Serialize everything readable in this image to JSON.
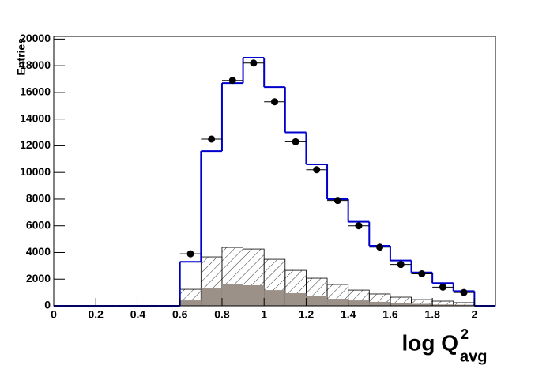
{
  "chart_data": {
    "type": "histogram",
    "ylabel": "Entries",
    "xlabel": "log Q",
    "xlabel_sup": "2",
    "xlabel_sub": "avg",
    "bins": [
      0,
      0.1,
      0.2,
      0.3,
      0.4,
      0.5,
      0.6,
      0.7,
      0.8,
      0.9,
      1.0,
      1.1,
      1.2,
      1.3,
      1.4,
      1.5,
      1.6,
      1.7,
      1.8,
      1.9,
      2.0,
      2.1
    ],
    "series": [
      {
        "style": "hatched",
        "color": "#000000",
        "values": [
          0,
          0,
          0,
          0,
          0,
          0,
          1240,
          3670,
          4380,
          4260,
          3490,
          2660,
          2070,
          1600,
          1180,
          890,
          650,
          470,
          355,
          240,
          0
        ]
      },
      {
        "style": "filled",
        "color": "#9c9189",
        "values": [
          0,
          0,
          0,
          0,
          0,
          0,
          410,
          1300,
          1650,
          1540,
          1180,
          950,
          710,
          530,
          410,
          300,
          200,
          150,
          100,
          80,
          0
        ]
      },
      {
        "style": "step",
        "color": "#0000cc",
        "values": [
          0,
          0,
          0,
          0,
          0,
          0,
          3300,
          11600,
          16700,
          18600,
          16400,
          13000,
          10600,
          8000,
          6300,
          4500,
          3400,
          2500,
          1700,
          1100,
          0
        ]
      },
      {
        "style": "points",
        "color": "#000000",
        "values": [
          null,
          null,
          null,
          null,
          null,
          null,
          3900,
          12500,
          16900,
          18200,
          15300,
          12300,
          10200,
          7900,
          6000,
          4400,
          3100,
          2400,
          1400,
          1000,
          null
        ]
      }
    ],
    "xlim": [
      0,
      2.1
    ],
    "ylim": [
      0,
      20200
    ],
    "xticks": [
      0,
      0.2,
      0.4,
      0.6,
      0.8,
      1,
      1.2,
      1.4,
      1.6,
      1.8,
      2
    ],
    "yticks": [
      0,
      2000,
      4000,
      6000,
      8000,
      10000,
      12000,
      14000,
      16000,
      18000,
      20000
    ]
  }
}
